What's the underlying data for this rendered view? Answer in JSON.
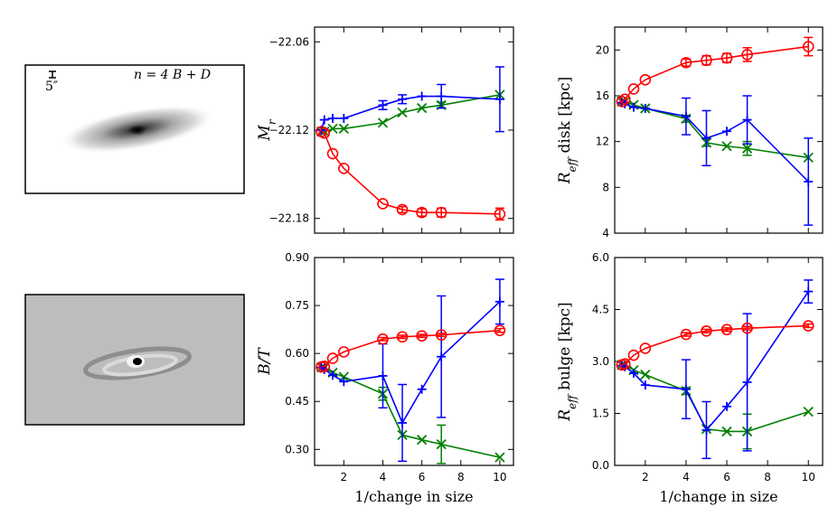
{
  "images": [
    {
      "name": "galaxy-image",
      "kind": "galaxy",
      "scale_label": "5″",
      "model_label": "n = 4 B + D"
    },
    {
      "name": "residual-image",
      "kind": "residual"
    }
  ],
  "colors": {
    "series_red": "#ff0000",
    "series_green": "#008000",
    "series_blue": "#0000ff"
  },
  "chart_data": [
    {
      "id": "mag",
      "type": "line",
      "ylabel": "M_r",
      "xlabel": "",
      "xlim": [
        0.5,
        10.7
      ],
      "ylim": [
        -22.19,
        -22.05
      ],
      "xticks": [
        2,
        4,
        6,
        8,
        10
      ],
      "xtick_labels": [
        "",
        "",
        "",
        "",
        ""
      ],
      "yticks": [
        -22.06,
        -22.12,
        -22.18
      ],
      "ytick_labels": [
        "−22.06",
        "−22.12",
        "−22.18"
      ],
      "series": [
        {
          "color": "#ff0000",
          "marker": "o",
          "x": [
            0.85,
            1.0,
            1.43,
            2.0,
            4.0,
            5.0,
            6.0,
            7.0,
            10.0
          ],
          "y": [
            -22.121,
            -22.122,
            -22.136,
            -22.146,
            -22.17,
            -22.174,
            -22.176,
            -22.176,
            -22.177
          ],
          "err": [
            0,
            0,
            0,
            0,
            0,
            0.002,
            0.0025,
            0.003,
            0.004
          ]
        },
        {
          "color": "#008000",
          "marker": "x",
          "x": [
            0.85,
            1.0,
            1.43,
            2.0,
            4.0,
            5.0,
            6.0,
            7.0,
            10.0
          ],
          "y": [
            -22.121,
            -22.121,
            -22.119,
            -22.119,
            -22.115,
            -22.108,
            -22.105,
            -22.103,
            -22.096
          ],
          "err": [
            0,
            0,
            0,
            0,
            0,
            0,
            0,
            0.002,
            0
          ]
        },
        {
          "color": "#0000ff",
          "marker": "+",
          "x": [
            0.85,
            1.0,
            1.43,
            2.0,
            4.0,
            5.0,
            6.0,
            7.0,
            10.0
          ],
          "y": [
            -22.12,
            -22.113,
            -22.112,
            -22.112,
            -22.103,
            -22.099,
            -22.097,
            -22.097,
            -22.099
          ],
          "err": [
            0,
            0,
            0,
            0,
            0.003,
            0.003,
            0,
            0.008,
            0.022
          ]
        }
      ]
    },
    {
      "id": "rdisk",
      "type": "line",
      "ylabel": "R_eff disk [kpc]",
      "xlabel": "",
      "xlim": [
        0.5,
        10.7
      ],
      "ylim": [
        4,
        22
      ],
      "xticks": [
        2,
        4,
        6,
        8,
        10
      ],
      "xtick_labels": [
        "",
        "",
        "",
        "",
        ""
      ],
      "yticks": [
        4,
        8,
        12,
        16,
        20
      ],
      "ytick_labels": [
        "4",
        "8",
        "12",
        "16",
        "20"
      ],
      "series": [
        {
          "color": "#ff0000",
          "marker": "o",
          "x": [
            0.85,
            1.0,
            1.43,
            2.0,
            4.0,
            5.0,
            6.0,
            7.0,
            10.0
          ],
          "y": [
            15.5,
            15.7,
            16.6,
            17.4,
            18.9,
            19.1,
            19.3,
            19.6,
            20.3
          ],
          "err": [
            0,
            0,
            0,
            0,
            0.3,
            0.4,
            0.4,
            0.6,
            0.8
          ]
        },
        {
          "color": "#008000",
          "marker": "x",
          "x": [
            0.85,
            1.0,
            1.43,
            2.0,
            4.0,
            5.0,
            6.0,
            7.0,
            10.0
          ],
          "y": [
            15.5,
            15.5,
            15.2,
            14.9,
            14.0,
            11.9,
            11.6,
            11.4,
            10.6
          ],
          "err": [
            0,
            0,
            0,
            0,
            0.3,
            0.3,
            0,
            0.6,
            0
          ]
        },
        {
          "color": "#0000ff",
          "marker": "+",
          "x": [
            0.85,
            1.0,
            1.43,
            2.0,
            4.0,
            5.0,
            6.0,
            7.0,
            10.0
          ],
          "y": [
            15.4,
            15.3,
            15.0,
            14.9,
            14.2,
            12.3,
            12.9,
            13.9,
            8.5
          ],
          "err": [
            0,
            0,
            0,
            0,
            1.6,
            2.4,
            0,
            2.1,
            3.8
          ]
        }
      ]
    },
    {
      "id": "bt",
      "type": "line",
      "ylabel": "B/T",
      "xlabel": "1/change in size",
      "xlim": [
        0.5,
        10.7
      ],
      "ylim": [
        0.25,
        0.9
      ],
      "xticks": [
        2,
        4,
        6,
        8,
        10
      ],
      "xtick_labels": [
        "2",
        "4",
        "6",
        "8",
        "10"
      ],
      "yticks": [
        0.3,
        0.45,
        0.6,
        0.75,
        0.9
      ],
      "ytick_labels": [
        "0.30",
        "0.45",
        "0.60",
        "0.75",
        "0.90"
      ],
      "series": [
        {
          "color": "#ff0000",
          "marker": "o",
          "x": [
            0.85,
            1.0,
            1.43,
            2.0,
            4.0,
            5.0,
            6.0,
            7.0,
            10.0
          ],
          "y": [
            0.558,
            0.56,
            0.585,
            0.605,
            0.645,
            0.652,
            0.655,
            0.658,
            0.672
          ],
          "err": [
            0,
            0,
            0,
            0,
            0.005,
            0.005,
            0.005,
            0.005,
            0.006
          ]
        },
        {
          "color": "#008000",
          "marker": "x",
          "x": [
            0.85,
            1.0,
            1.43,
            2.0,
            4.0,
            5.0,
            6.0,
            7.0,
            10.0
          ],
          "y": [
            0.557,
            0.555,
            0.54,
            0.527,
            0.474,
            0.345,
            0.33,
            0.316,
            0.275
          ],
          "err": [
            0,
            0,
            0,
            0,
            0.02,
            0,
            0,
            0.06,
            0
          ]
        },
        {
          "color": "#0000ff",
          "marker": "+",
          "x": [
            0.85,
            1.0,
            1.43,
            2.0,
            4.0,
            5.0,
            6.0,
            7.0,
            10.0
          ],
          "y": [
            0.556,
            0.55,
            0.532,
            0.512,
            0.53,
            0.383,
            0.488,
            0.59,
            0.762
          ],
          "err": [
            0,
            0,
            0,
            0,
            0.1,
            0.12,
            0,
            0.19,
            0.07
          ]
        }
      ]
    },
    {
      "id": "rbulge",
      "type": "line",
      "ylabel": "R_eff bulge [kpc]",
      "xlabel": "1/change in size",
      "xlim": [
        0.5,
        10.7
      ],
      "ylim": [
        0,
        6
      ],
      "xticks": [
        2,
        4,
        6,
        8,
        10
      ],
      "xtick_labels": [
        "2",
        "4",
        "6",
        "8",
        "10"
      ],
      "yticks": [
        0.0,
        1.5,
        3.0,
        4.5,
        6.0
      ],
      "ytick_labels": [
        "0.0",
        "1.5",
        "3.0",
        "4.5",
        "6.0"
      ],
      "series": [
        {
          "color": "#ff0000",
          "marker": "o",
          "x": [
            0.85,
            1.0,
            1.43,
            2.0,
            4.0,
            5.0,
            6.0,
            7.0,
            10.0
          ],
          "y": [
            2.9,
            2.93,
            3.18,
            3.38,
            3.78,
            3.88,
            3.92,
            3.96,
            4.03
          ],
          "err": [
            0,
            0,
            0,
            0,
            0.05,
            0.05,
            0.05,
            0.05,
            0.05
          ]
        },
        {
          "color": "#008000",
          "marker": "x",
          "x": [
            0.85,
            1.0,
            1.43,
            2.0,
            4.0,
            5.0,
            6.0,
            7.0,
            10.0
          ],
          "y": [
            2.9,
            2.9,
            2.75,
            2.62,
            2.15,
            1.05,
            0.98,
            0.98,
            1.55
          ],
          "err": [
            0,
            0,
            0,
            0,
            0.1,
            0,
            0,
            0.5,
            0
          ]
        },
        {
          "color": "#0000ff",
          "marker": "+",
          "x": [
            0.85,
            1.0,
            1.43,
            2.0,
            4.0,
            5.0,
            6.0,
            7.0,
            10.0
          ],
          "y": [
            2.88,
            2.85,
            2.66,
            2.32,
            2.2,
            1.02,
            1.7,
            2.4,
            5.02
          ],
          "err": [
            0,
            0,
            0,
            0,
            0.85,
            0.82,
            0,
            1.98,
            0.33
          ]
        }
      ]
    }
  ]
}
